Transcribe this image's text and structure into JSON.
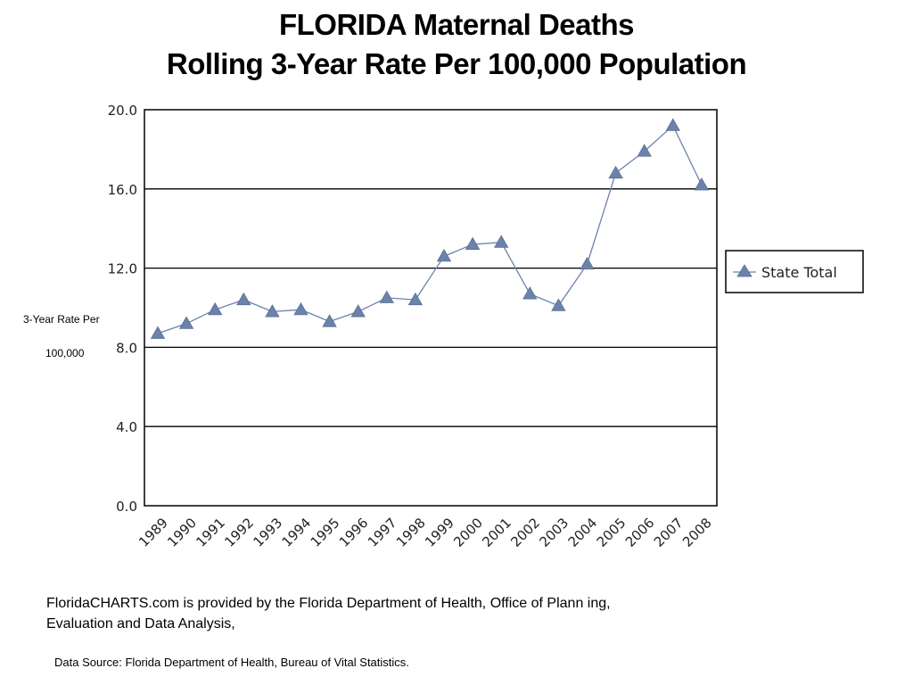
{
  "title": {
    "line1": "FLORIDA Maternal Deaths",
    "line2": "Rolling 3-Year Rate Per 100,000 Population"
  },
  "ylabel": {
    "line1": "3-Year Rate Per",
    "line2": "100,000"
  },
  "footer": {
    "note": "FloridaCHARTS.com is provided by the Florida Department of Health, Office of Plann ing, Evaluation and Data Analysis,",
    "source": "Data Source: Florida Department of Health, Bureau of Vital Statistics."
  },
  "chart_data": {
    "type": "line",
    "title": "FLORIDA Maternal Deaths",
    "subtitle": "Rolling 3-Year Rate Per 100,000 Population",
    "xlabel": "",
    "ylabel": "3-Year Rate Per 100,000",
    "categories": [
      "1989",
      "1990",
      "1991",
      "1992",
      "1993",
      "1994",
      "1995",
      "1996",
      "1997",
      "1998",
      "1999",
      "2000",
      "2001",
      "2002",
      "2003",
      "2004",
      "2005",
      "2006",
      "2007",
      "2008"
    ],
    "series": [
      {
        "name": "State Total",
        "values": [
          8.7,
          9.2,
          9.9,
          10.4,
          9.8,
          9.9,
          9.3,
          9.8,
          10.5,
          10.4,
          12.6,
          13.2,
          13.3,
          10.7,
          10.1,
          12.2,
          16.8,
          17.9,
          19.2,
          16.2
        ],
        "color": "#6b83ab"
      }
    ],
    "ylim": [
      0,
      20
    ],
    "yticks": [
      "0.0",
      "4.0",
      "8.0",
      "12.0",
      "16.0",
      "20.0"
    ],
    "grid": true,
    "legend": "right"
  },
  "colors": {
    "series": "#6b83ab",
    "grid": "#000000",
    "frame": "#000000"
  }
}
